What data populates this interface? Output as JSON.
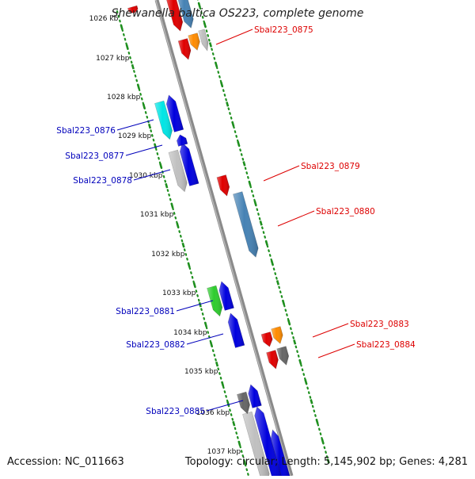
{
  "title": "Shewanella baltica OS223, complete genome",
  "footer": {
    "accession": "Accession: NC_011663",
    "summary": "Topology: circular; Length: 5,145,902 bp; Genes: 4,281"
  },
  "ruler": {
    "unit_suffix": " kbp",
    "ticks": [
      "1026 kb",
      "1027 kbp",
      "1028 kbp",
      "1029 kbp",
      "1030 kbp",
      "1031 kbp",
      "1032 kbp",
      "1033 kbp",
      "1034 kbp",
      "1035 kbp",
      "1036 kbp",
      "1037 kbp"
    ]
  },
  "colors": {
    "backbone": "#8a8a8a",
    "track_dots": "#1e8f1e",
    "label_plus_strand": "#dd0000",
    "label_minus_strand": "#0000bb",
    "red": "#e00000",
    "blue": "#0000dd",
    "steelblue": "#4682b4",
    "orange": "#ff8c00",
    "gray": "#c0c0c0",
    "darkgray": "#666666",
    "cyan": "#00e5e5",
    "green": "#2ecc2e"
  },
  "genes": [
    {
      "name": "Sbal223_0875",
      "strand": "+",
      "color": "orange"
    },
    {
      "name": "Sbal223_0876",
      "strand": "-",
      "color": "cyan"
    },
    {
      "name": "Sbal223_0877",
      "strand": "-",
      "color": "blue"
    },
    {
      "name": "Sbal223_0878",
      "strand": "-",
      "color": "gray"
    },
    {
      "name": "Sbal223_0879",
      "strand": "+",
      "color": "red"
    },
    {
      "name": "Sbal223_0880",
      "strand": "+",
      "color": "steelblue"
    },
    {
      "name": "Sbal223_0881",
      "strand": "-",
      "color": "green"
    },
    {
      "name": "Sbal223_0882",
      "strand": "-",
      "color": "blue"
    },
    {
      "name": "Sbal223_0883",
      "strand": "+",
      "color": "orange"
    },
    {
      "name": "Sbal223_0884",
      "strand": "+",
      "color": "darkgray"
    },
    {
      "name": "Sbal223_0885",
      "strand": "-",
      "color": "darkgray"
    }
  ],
  "unlabeled_features": [
    {
      "strand": "+",
      "color": "red"
    },
    {
      "strand": "+",
      "color": "steelblue"
    },
    {
      "strand": "+",
      "color": "red"
    },
    {
      "strand": "+",
      "color": "gray"
    },
    {
      "strand": "-",
      "color": "blue"
    },
    {
      "strand": "-",
      "color": "blue"
    },
    {
      "strand": "-",
      "color": "blue"
    },
    {
      "strand": "-",
      "color": "blue"
    },
    {
      "strand": "+",
      "color": "red"
    },
    {
      "strand": "+",
      "color": "red"
    },
    {
      "strand": "+",
      "color": "red"
    },
    {
      "strand": "-",
      "color": "gray"
    },
    {
      "strand": "-",
      "color": "blue"
    },
    {
      "strand": "-",
      "color": "blue"
    }
  ]
}
